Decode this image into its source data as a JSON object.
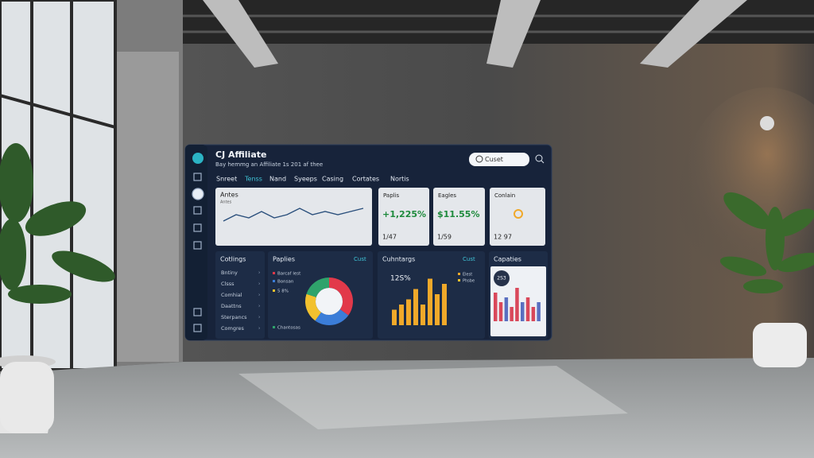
{
  "screen": {
    "brand": "CJ Affiliate",
    "subtitle": "Bay hemmg an Affiliate 1s 201 af thee",
    "search": "Cuset",
    "nav": [
      "Snreet",
      "Tenss",
      "Nand",
      "Syeeps",
      "Casing",
      "Cortates",
      "Nortis"
    ],
    "line_card": {
      "title": "Antes",
      "subtitle": "Antes",
      "values": [
        3,
        5,
        4,
        6,
        4,
        5,
        7,
        5,
        6,
        5,
        6,
        7
      ]
    },
    "stat_cards": [
      {
        "title": "Paplis",
        "value": "+1,225%",
        "foot": "1/47",
        "color": "#1e8a3c"
      },
      {
        "title": "Eagles",
        "value": "$11.55%",
        "foot": "1/59",
        "color": "#1e8a3c"
      },
      {
        "title": "Conlain",
        "foot": "12 97"
      }
    ],
    "list_card": {
      "title": "Cotlings",
      "items": [
        "Bntiny",
        "Clsss",
        "Comhial",
        "Daattns",
        "Sterpancs",
        "Comgres"
      ]
    },
    "donut_card": {
      "title": "Paplies",
      "link": "Cust",
      "legend": [
        "Barcaf lest",
        "Bonsan",
        "5 8%",
        "Chantosas"
      ],
      "values": [
        35,
        25,
        20,
        20
      ],
      "colors": [
        "#e2394a",
        "#3b7dd8",
        "#f2c12e",
        "#2fa36b"
      ]
    },
    "bar_card": {
      "title": "Cuhntargs",
      "link": "Cust",
      "value": "12S%",
      "legend": [
        "Elest",
        "Phsbe"
      ],
      "values": [
        3,
        4,
        5,
        7,
        4,
        9,
        6,
        8
      ],
      "color": "#f0a92a"
    },
    "cap_card": {
      "title": "Capaties",
      "value": "2S3",
      "values": [
        6,
        4,
        5,
        3,
        7,
        4,
        5,
        3,
        4
      ],
      "colors": [
        "#d9485a",
        "#5a6fc0"
      ]
    }
  }
}
